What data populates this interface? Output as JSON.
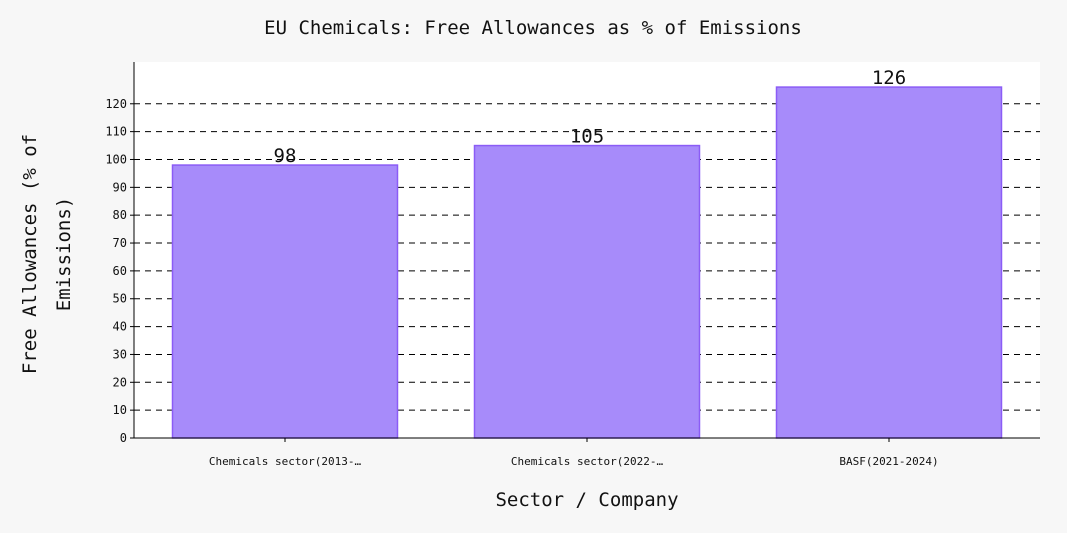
{
  "chart_data": {
    "type": "bar",
    "title": "EU Chemicals: Free Allowances as % of Emissions",
    "xlabel": "Sector / Company",
    "ylabel": "Free Allowances (% of Emissions)",
    "ylabel_lines": [
      "Free Allowances (% of",
      "Emissions)"
    ],
    "categories": [
      "Chemicals sector(2013-…",
      "Chemicals sector(2022-…",
      "BASF(2021-2024)"
    ],
    "values": [
      98,
      105,
      126
    ],
    "data_labels": [
      "98",
      "105",
      "126"
    ],
    "y_ticks": [
      0,
      10,
      20,
      30,
      40,
      50,
      60,
      70,
      80,
      90,
      100,
      110,
      120
    ],
    "ylim": [
      0,
      135
    ],
    "grid": true,
    "legend": "none",
    "colors": {
      "bar_fill": "#a78bfa",
      "bar_stroke": "#8b5cf6",
      "grid": "#000000",
      "plot_bg": "#ffffff",
      "page_bg": "#f7f7f7"
    }
  }
}
